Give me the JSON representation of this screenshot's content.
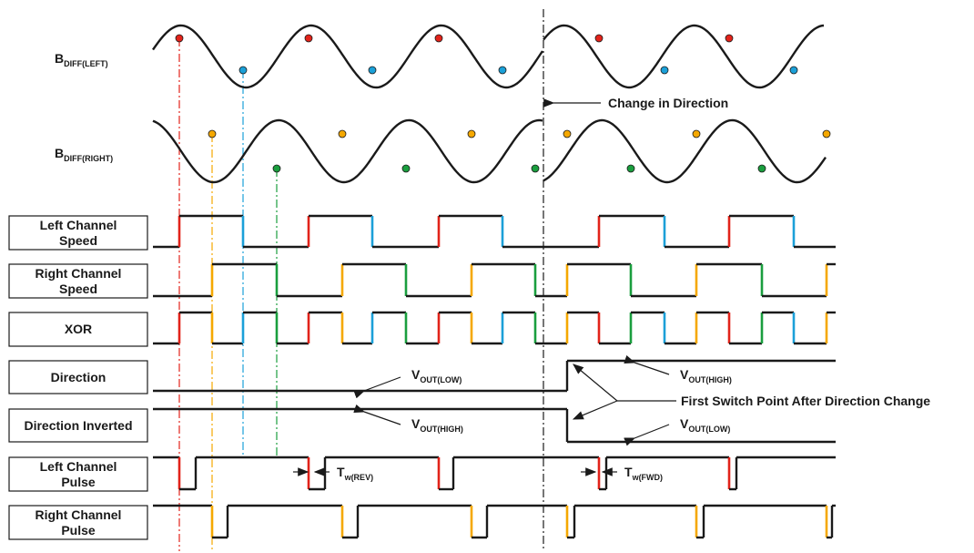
{
  "signals": {
    "bdiff_left": {
      "main": "B",
      "sub": "DIFF(LEFT)"
    },
    "bdiff_right": {
      "main": "B",
      "sub": "DIFF(RIGHT)"
    }
  },
  "annotations": {
    "change_direction": "Change in Direction",
    "first_switch": "First Switch Point After Direction Change",
    "vout_low_1": {
      "main": "V",
      "sub": "OUT(LOW)"
    },
    "vout_high_1": {
      "main": "V",
      "sub": "OUT(HIGH)"
    },
    "vout_high_2": {
      "main": "V",
      "sub": "OUT(HIGH)"
    },
    "vout_low_2": {
      "main": "V",
      "sub": "OUT(LOW)"
    },
    "tw_rev": {
      "main": "T",
      "sub": "w(REV)"
    },
    "tw_fwd": {
      "main": "T",
      "sub": "w(FWD)"
    }
  },
  "boxes": {
    "left_speed": [
      "Left Channel",
      "Speed"
    ],
    "right_speed": [
      "Right Channel",
      "Speed"
    ],
    "xor": [
      "XOR"
    ],
    "direction": [
      "Direction"
    ],
    "direction_inverted": [
      "Direction Inverted"
    ],
    "left_pulse": [
      "Left Channel",
      "Pulse"
    ],
    "right_pulse": [
      "Right Channel",
      "Pulse"
    ]
  },
  "colors": {
    "red": "#e2231a",
    "blue": "#1ba0d8",
    "yellow": "#f5a800",
    "green": "#1a9e3e",
    "black": "#1a1a1a"
  }
}
